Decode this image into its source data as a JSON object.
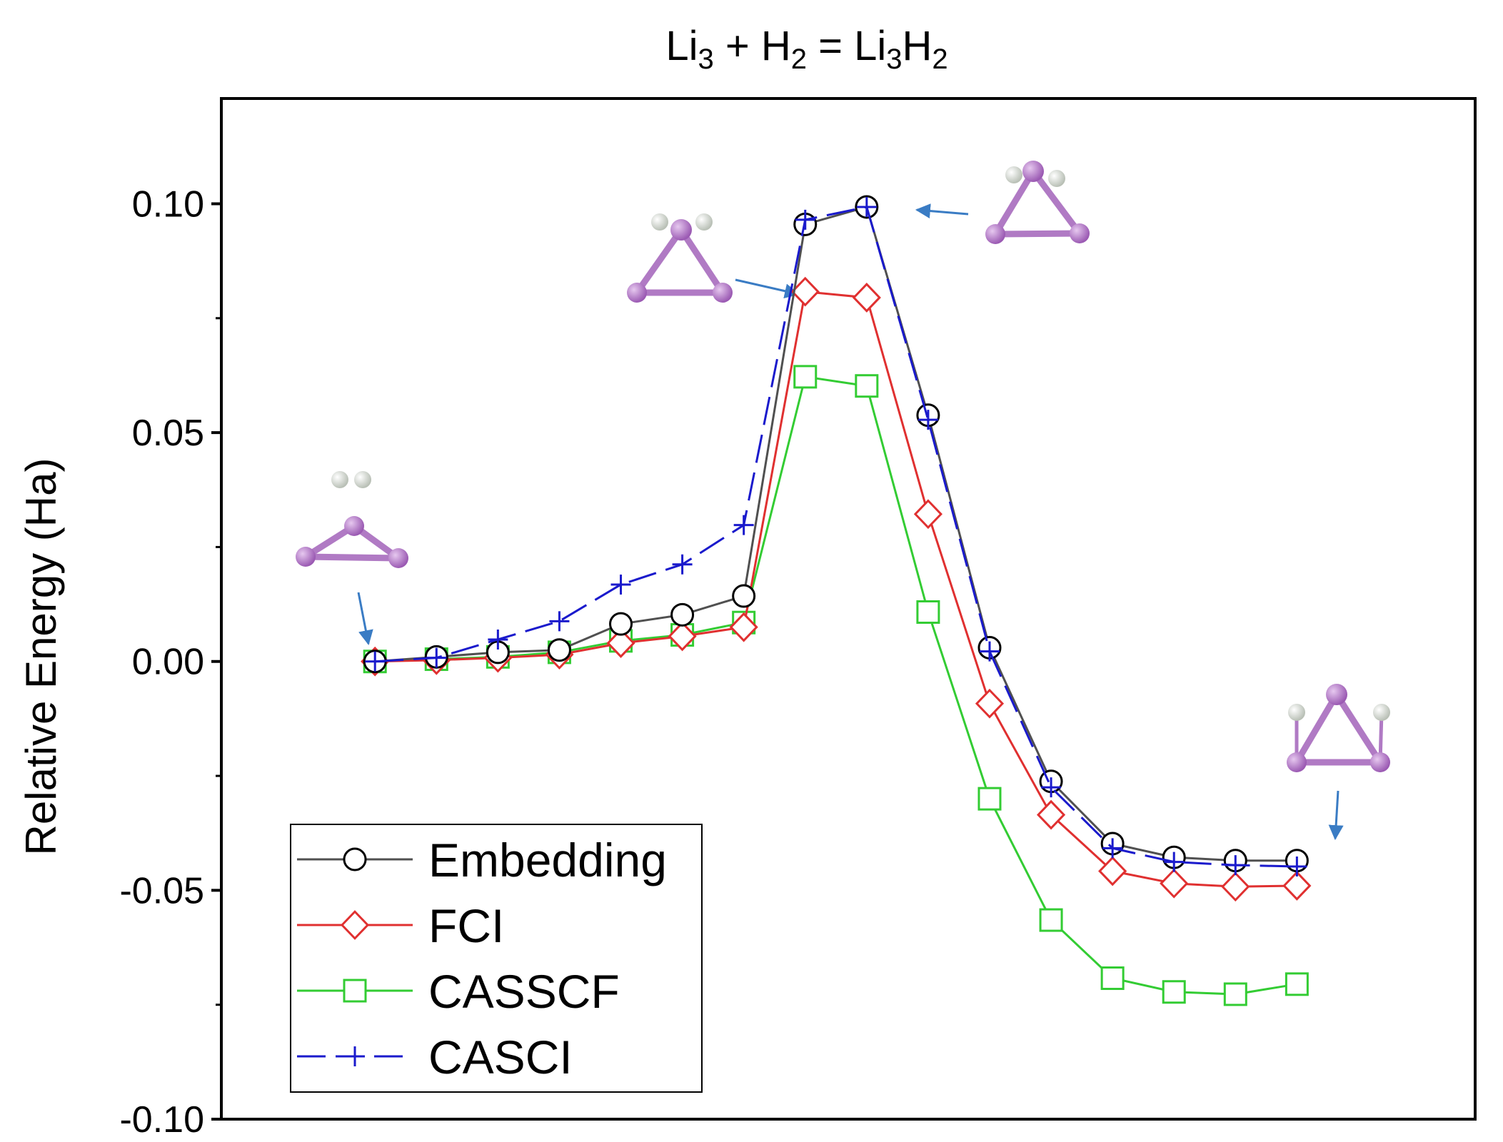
{
  "chart_data": {
    "type": "line",
    "title": {
      "base1": "Li",
      "sub1": "3",
      "mid": " + H",
      "sub2": "2",
      "eq": " = Li",
      "sub3": "3",
      "h": "H",
      "sub4": "2"
    },
    "xlabel": "",
    "ylabel": "Relative Energy (Ha)",
    "x": [
      1,
      2,
      3,
      4,
      5,
      6,
      7,
      8,
      9,
      10,
      11,
      12,
      13,
      14,
      15,
      16
    ],
    "xlim": [
      -1.5,
      18.9
    ],
    "ylim": [
      -0.1,
      0.123
    ],
    "yticks": [
      -0.1,
      -0.05,
      0.0,
      0.05,
      0.1
    ],
    "ytick_labels": [
      "-0.10",
      "-0.05",
      "0.00",
      "0.05",
      "0.10"
    ],
    "legend_position": "bottom-left",
    "series": [
      {
        "name": "Embedding",
        "color": "#505050",
        "marker": "circle",
        "dash": "",
        "values": [
          0.0,
          0.001,
          0.002,
          0.0025,
          0.0082,
          0.0102,
          0.0143,
          0.0955,
          0.0993,
          0.0538,
          0.003,
          -0.0262,
          -0.0398,
          -0.0428,
          -0.0435,
          -0.0435
        ]
      },
      {
        "name": "FCI",
        "color": "#e03030",
        "marker": "diamond",
        "dash": "",
        "values": [
          0.0,
          0.0003,
          0.0008,
          0.0015,
          0.004,
          0.0055,
          0.0075,
          0.0808,
          0.0795,
          0.0322,
          -0.0092,
          -0.0335,
          -0.0458,
          -0.0485,
          -0.0492,
          -0.049
        ]
      },
      {
        "name": "CASSCF",
        "color": "#33cc33",
        "marker": "square",
        "dash": "",
        "values": [
          0.0,
          0.0005,
          0.001,
          0.002,
          0.0045,
          0.0058,
          0.0085,
          0.0622,
          0.0602,
          0.0108,
          -0.03,
          -0.0565,
          -0.0692,
          -0.0722,
          -0.0727,
          -0.0705
        ]
      },
      {
        "name": "CASCI",
        "color": "#1a1acc",
        "marker": "plus",
        "dash": "40 14",
        "values": [
          0.0,
          0.0008,
          0.0048,
          0.0088,
          0.0168,
          0.0212,
          0.0298,
          0.0965,
          0.0993,
          0.0528,
          0.0022,
          -0.0275,
          -0.0408,
          -0.0438,
          -0.0445,
          -0.0448
        ]
      }
    ]
  },
  "colors": {
    "arrow": "#3a7cc4",
    "li_atom": "#b576c8",
    "h_atom": "#e8ebe6",
    "bond": "#b07ac4"
  }
}
